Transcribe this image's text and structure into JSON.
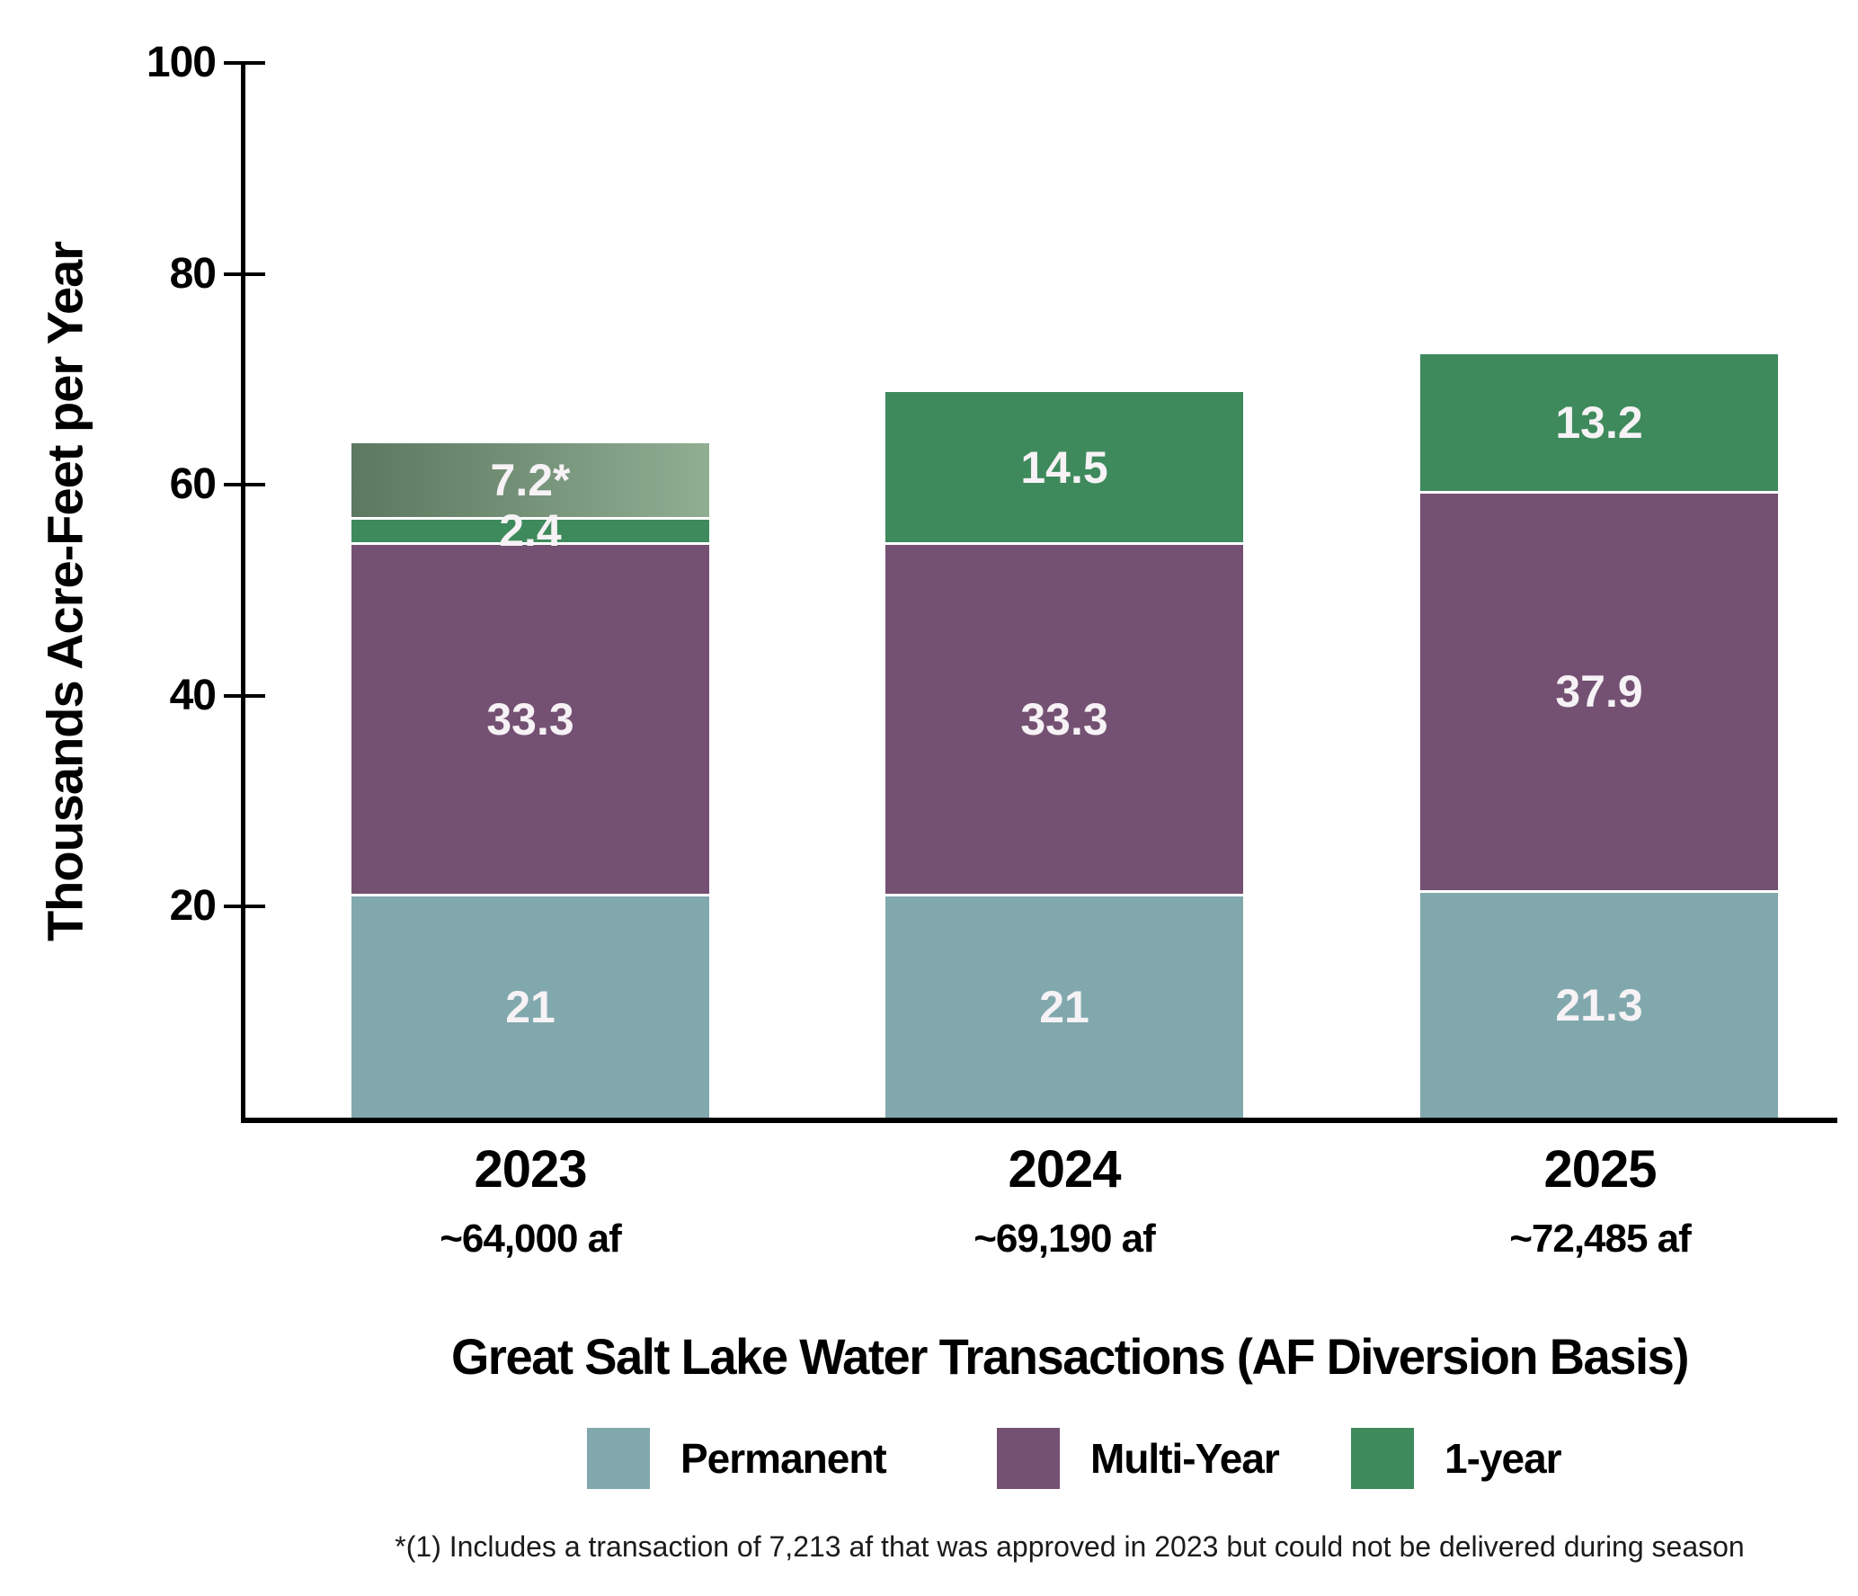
{
  "chart_data": {
    "type": "bar",
    "stacked": true,
    "title": "Great Salt Lake Water Transactions (AF Diversion Basis)",
    "ylabel": "Thousands Acre-Feet per Year",
    "ylim": [
      0,
      100
    ],
    "yticks": [
      20,
      40,
      60,
      80,
      100
    ],
    "grid": false,
    "legend_position": "bottom",
    "categories": [
      "2023",
      "2024",
      "2025"
    ],
    "category_sublabels": [
      "~64,000 af",
      "~69,190 af",
      "~72,485 af"
    ],
    "series": [
      {
        "name": "Permanent",
        "color": "#81A8AD",
        "values": [
          21,
          21,
          21.3
        ],
        "value_labels": [
          "21",
          "21",
          "21.3"
        ]
      },
      {
        "name": "Multi-Year",
        "color": "#745173",
        "values": [
          33.3,
          33.3,
          37.9
        ],
        "value_labels": [
          "33.3",
          "33.3",
          "37.9"
        ]
      },
      {
        "name": "1-year",
        "color": "#3E8A5C",
        "values": [
          2.4,
          14.5,
          13.2
        ],
        "value_labels": [
          "2.4",
          "14.5",
          "13.2"
        ]
      },
      {
        "name": "unlabeled-gradient-segment",
        "gradient": [
          "#5C7860",
          "#8FAE92"
        ],
        "values": [
          7.2,
          0,
          0
        ],
        "value_labels": [
          "7.2*",
          "",
          ""
        ]
      }
    ],
    "legend": [
      {
        "label": "Permanent",
        "color": "#81A8AD"
      },
      {
        "label": "Multi-Year",
        "color": "#745173"
      },
      {
        "label": "1-year",
        "color": "#3E8A5C"
      }
    ],
    "footnote": "*(1) Includes a transaction of 7,213 af that was approved in 2023 but could not be delivered during season"
  }
}
